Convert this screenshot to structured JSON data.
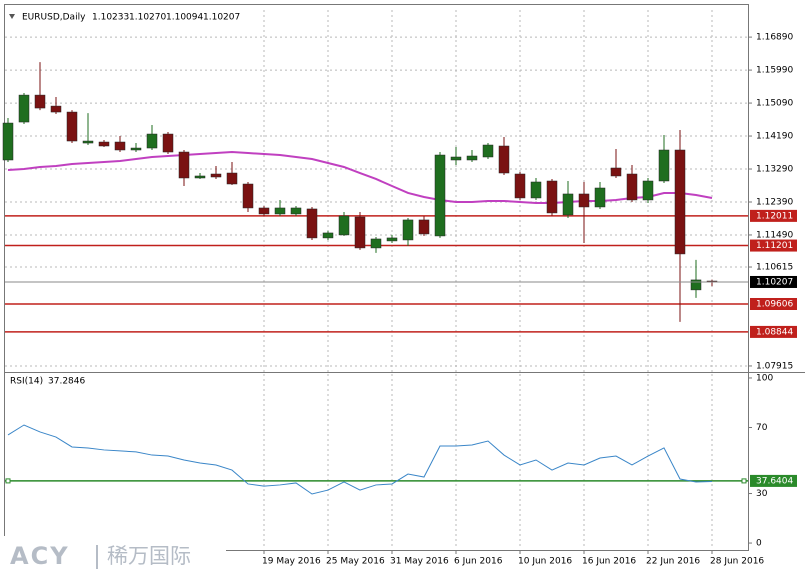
{
  "chart_data": {
    "type": "candlestick",
    "title": "EURUSD,Daily",
    "header_labels": [
      "1.10233",
      "1.10270",
      "1.10094",
      "1.10207"
    ],
    "categories": [
      null,
      null,
      null,
      null,
      null,
      null,
      null,
      null,
      null,
      null,
      null,
      null,
      null,
      null,
      null,
      null,
      "19 May 2016",
      null,
      null,
      null,
      "25 May 2016",
      null,
      null,
      null,
      "31 May 2016",
      null,
      null,
      null,
      "6 Jun 2016",
      null,
      null,
      null,
      "10 Jun 2016",
      null,
      null,
      null,
      "16 Jun 2016",
      null,
      null,
      null,
      "22 Jun 2016",
      null,
      null,
      null,
      "28 Jun 2016"
    ],
    "open": [
      1.13536,
      1.14572,
      1.15308,
      1.15008,
      1.14845,
      1.13999,
      1.14027,
      1.14027,
      1.13809,
      1.13863,
      1.14245,
      1.13754,
      1.13045,
      1.13154,
      1.13181,
      1.12881,
      1.12227,
      1.12063,
      1.12063,
      1.122,
      1.11409,
      1.11491,
      1.11981,
      1.11136,
      1.11327,
      1.11354,
      1.119,
      1.11463,
      1.13536,
      1.13536,
      1.13618,
      1.13918,
      1.13154,
      1.125,
      1.12963,
      1.12036,
      1.12609,
      1.12254,
      1.13318,
      1.13154,
      1.12445,
      1.12963,
      1.13809,
      1.09991,
      1.10233
    ],
    "high": [
      1.14681,
      1.15363,
      1.16208,
      1.15254,
      1.14899,
      1.14817,
      1.14081,
      1.1419,
      1.13999,
      1.1449,
      1.14299,
      1.13809,
      1.13181,
      1.13372,
      1.13481,
      1.12936,
      1.12281,
      1.12445,
      1.12281,
      1.12254,
      1.116,
      1.12118,
      1.12118,
      1.11436,
      1.11491,
      1.11954,
      1.12009,
      1.13754,
      1.1389,
      1.13809,
      1.13999,
      1.14163,
      1.13209,
      1.13045,
      1.13018,
      1.12963,
      1.12936,
      1.12936,
      1.13836,
      1.13399,
      1.13045,
      1.14218,
      1.14354,
      1.10809,
      1.1027
    ],
    "low": [
      1.13481,
      1.14518,
      1.14899,
      1.1479,
      1.13999,
      1.13945,
      1.1389,
      1.13754,
      1.13754,
      1.13809,
      1.13699,
      1.12827,
      1.13018,
      1.13018,
      1.12854,
      1.12118,
      1.12009,
      1.12009,
      1.12009,
      1.11354,
      1.11354,
      1.11463,
      1.11082,
      1.11,
      1.11272,
      1.11191,
      1.11463,
      1.11409,
      1.13399,
      1.13481,
      1.13563,
      1.13127,
      1.12445,
      1.12445,
      1.12009,
      1.11954,
      1.11272,
      1.122,
      1.13045,
      1.12391,
      1.12363,
      1.12909,
      1.09118,
      1.09773,
      1.10094
    ],
    "close": [
      1.14545,
      1.15308,
      1.14954,
      1.14845,
      1.14054,
      1.14054,
      1.13918,
      1.13809,
      1.13863,
      1.14245,
      1.13754,
      1.13045,
      1.131,
      1.13072,
      1.12881,
      1.12227,
      1.12063,
      1.12227,
      1.12227,
      1.11409,
      1.11545,
      1.12009,
      1.11136,
      1.11381,
      1.11409,
      1.119,
      1.11518,
      1.13672,
      1.13618,
      1.13645,
      1.13945,
      1.13181,
      1.125,
      1.12936,
      1.12091,
      1.12609,
      1.12254,
      1.12772,
      1.131,
      1.12445,
      1.12963,
      1.13809,
      1.10972,
      1.10263,
      1.10207
    ],
    "up_color": "#1f6e1f",
    "down_color": "#7a1212",
    "ylim": [
      1.0775,
      1.1763
    ],
    "yticks": [
      {
        "value": 1.1689,
        "label": "1.16890"
      },
      {
        "value": 1.1599,
        "label": "1.15990"
      },
      {
        "value": 1.1509,
        "label": "1.15090"
      },
      {
        "value": 1.1419,
        "label": "1.14190"
      },
      {
        "value": 1.1329,
        "label": "1.13290"
      },
      {
        "value": 1.1239,
        "label": "1.12390"
      },
      {
        "value": 1.1149,
        "label": "1.11490"
      },
      1.10615,
      1.07915
    ],
    "grid": true,
    "ma": {
      "color": "#c040c0",
      "values": [
        1.13263,
        1.1329,
        1.13345,
        1.13372,
        1.13427,
        1.13454,
        1.13481,
        1.13509,
        1.13563,
        1.13618,
        1.13645,
        1.13672,
        1.13699,
        1.13727,
        1.13754,
        1.13727,
        1.13699,
        1.13672,
        1.13618,
        1.13563,
        1.13454,
        1.13345,
        1.13181,
        1.13018,
        1.12827,
        1.12636,
        1.12527,
        1.12445,
        1.12391,
        1.12391,
        1.12418,
        1.12418,
        1.12391,
        1.12363,
        1.12363,
        1.12391,
        1.12418,
        1.12418,
        1.12445,
        1.125,
        1.12527,
        1.12636,
        1.12636,
        1.12581,
        1.125
      ]
    },
    "levels": {
      "color": "#c0201c",
      "values": [
        1.12011,
        1.11201,
        1.09606,
        1.08844
      ]
    },
    "price_line_color": "#8a8a8a",
    "rsi": {
      "name": "RSI(14)",
      "color": "#3a86c8",
      "values": [
        65.5,
        71.5,
        67.3,
        64.2,
        58.2,
        57.6,
        56.4,
        55.8,
        55.2,
        53.3,
        52.7,
        50.3,
        48.5,
        47.3,
        44.2,
        35.8,
        34.5,
        35.2,
        36.4,
        29.7,
        32.1,
        37.0,
        32.1,
        35.2,
        35.8,
        41.8,
        40.0,
        58.8,
        58.8,
        59.4,
        61.8,
        53.3,
        47.3,
        50.3,
        44.2,
        48.5,
        47.3,
        51.5,
        52.7,
        47.3,
        52.7,
        57.6,
        38.8,
        37.0,
        37.2846
      ],
      "ylim": [
        -3,
        102.4
      ],
      "yticks": [
        100,
        70,
        30,
        0
      ],
      "level": 37.6404,
      "level_color": "#2a8a2a"
    }
  },
  "watermark": {
    "brand": "ACY",
    "name": "稀万国际"
  }
}
